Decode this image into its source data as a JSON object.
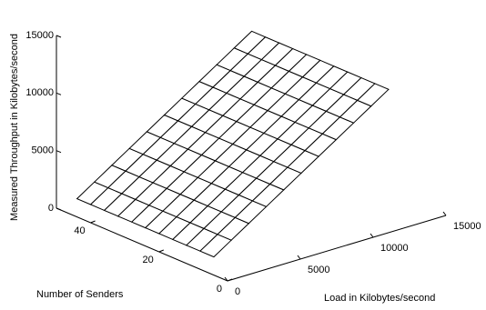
{
  "chart_data": {
    "type": "surface",
    "xlabel": "Load in Kilobytes/second",
    "ylabel": "Number of Senders",
    "zlabel": "Measured Throughput in Kilobytes/second",
    "x": [
      0,
      1200,
      2400,
      3600,
      4800,
      6000,
      7200,
      8400,
      9600,
      10800,
      12000
    ],
    "y": [
      4,
      8,
      12,
      16,
      20,
      24,
      28,
      32,
      36,
      40,
      44
    ],
    "z": [
      [
        0,
        1000,
        2000,
        3000,
        4000,
        5000,
        6000,
        7000,
        8000,
        9000,
        10000
      ],
      [
        0,
        1000,
        2000,
        3000,
        4000,
        5000,
        6000,
        7000,
        8000,
        9000,
        10000
      ],
      [
        0,
        1000,
        2000,
        3000,
        4000,
        5000,
        6000,
        7000,
        8000,
        9000,
        10000
      ],
      [
        0,
        1000,
        2000,
        3000,
        4000,
        5000,
        6000,
        7000,
        8000,
        9000,
        10000
      ],
      [
        0,
        1000,
        2000,
        3000,
        4000,
        5000,
        6000,
        7000,
        8000,
        9000,
        10000
      ],
      [
        0,
        1000,
        2000,
        3000,
        4000,
        5000,
        6000,
        7000,
        8000,
        9000,
        10000
      ],
      [
        0,
        1000,
        2000,
        3000,
        4000,
        5000,
        6000,
        7000,
        8000,
        9000,
        10000
      ],
      [
        0,
        1000,
        2000,
        3000,
        4000,
        5000,
        6000,
        7000,
        8000,
        9000,
        10000
      ],
      [
        0,
        1000,
        2000,
        3000,
        4000,
        5000,
        6000,
        7000,
        8000,
        9000,
        10000
      ],
      [
        0,
        1000,
        2000,
        3000,
        4000,
        5000,
        6000,
        7000,
        8000,
        9000,
        10000
      ],
      [
        0,
        1000,
        2000,
        3000,
        4000,
        5000,
        6000,
        7000,
        8000,
        9000,
        10000
      ]
    ],
    "xlim": [
      0,
      15000
    ],
    "xticks": [
      0,
      5000,
      10000,
      15000
    ],
    "ylim": [
      0,
      50
    ],
    "yticks": [
      0,
      20,
      40
    ],
    "zlim": [
      0,
      15000
    ],
    "zticks": [
      0,
      5000,
      10000,
      15000
    ]
  }
}
